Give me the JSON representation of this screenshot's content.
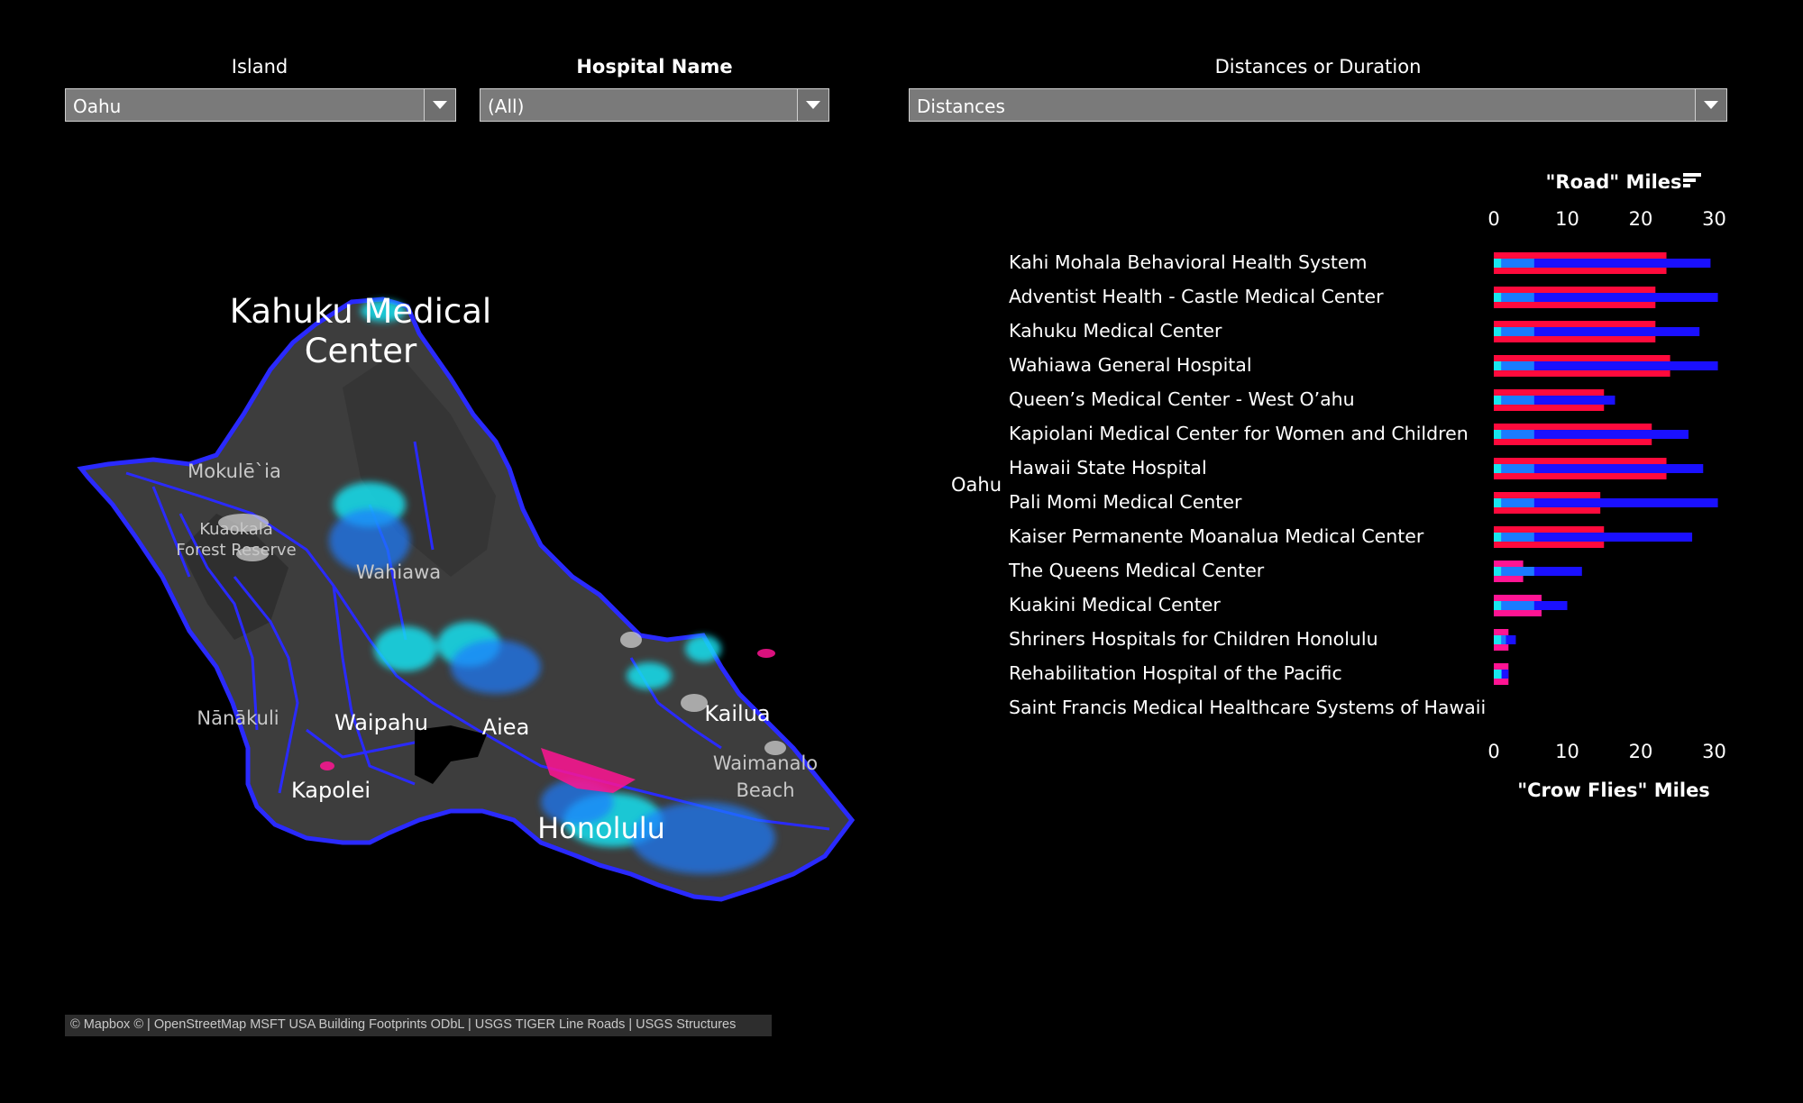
{
  "filters": {
    "island": {
      "label": "Island",
      "value": "Oahu"
    },
    "hospital": {
      "label": "Hospital Name",
      "value": "(All)"
    },
    "metric": {
      "label": "Distances or Duration",
      "value": "Distances"
    }
  },
  "map": {
    "labels": {
      "kahuku": "Kahuku Medical",
      "kahuku2": "Center",
      "mokuleia": "Mokulē`ia",
      "kuaokala": "Kuaokala",
      "kuaokala2": "Forest Reserve",
      "wahiawa": "Wahiawa",
      "nanakuli": "Nānākuli",
      "waipahu": "Waipahu",
      "aiea": "Aiea",
      "kapolei": "Kapolei",
      "honolulu": "Honolulu",
      "kailua": "Kailua",
      "waimanalo": "Waimanalo",
      "beach": "Beach"
    },
    "attribution": "© Mapbox © | OpenStreetMap MSFT USA Building Footprints ODbL | USGS TIGER Line Roads | USGS Structures",
    "colors": {
      "land": "#3a3a3a",
      "roads": "#2222ff",
      "cyan": "#18e0ef",
      "pink": "#ff1493"
    }
  },
  "chart_data": {
    "type": "bar",
    "row_group": "Oahu",
    "top_axis_title": "\"Road\" Miles",
    "bottom_axis_title": "\"Crow Flies\" Miles",
    "xlim": [
      0,
      30
    ],
    "ticks": [
      "0",
      "10",
      "20",
      "30"
    ],
    "categories": [
      "Kahi Mohala Behavioral Health System",
      "Adventist Health - Castle Medical Center",
      "Kahuku Medical Center",
      "Wahiawa General Hospital",
      "Queen’s Medical Center - West O’ahu",
      "Kapiolani Medical Center for Women and Children",
      "Hawaii State Hospital",
      "Pali Momi Medical Center",
      "Kaiser Permanente Moanalua Medical Center",
      "The Queens Medical Center",
      "Kuakini Medical Center",
      "Shriners Hospitals for Children Honolulu",
      "Rehabilitation Hospital of the Pacific",
      "Saint Francis Medical Healthcare Systems of Hawaii"
    ],
    "series": [
      {
        "values": [
          23.5,
          22,
          22,
          24,
          15,
          21.5,
          23.5,
          14.5,
          15,
          4,
          6.5,
          2,
          2,
          0
        ]
      },
      {
        "values": [
          29.5,
          30.5,
          28,
          30.5,
          16.5,
          26.5,
          28.5,
          30.5,
          27,
          12,
          10,
          3,
          2,
          0
        ]
      }
    ],
    "colors": {
      "road_outer": "#ff0a3c",
      "road_inner": "#1a10ff",
      "mid": "#1a7bff",
      "short": "#18e6ef",
      "pink": "#ff1493"
    }
  }
}
